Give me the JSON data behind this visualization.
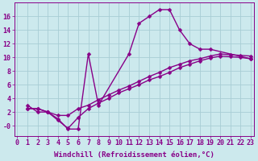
{
  "background_color": "#cce9ed",
  "grid_color": "#a8cdd4",
  "line_color": "#880088",
  "xlabel": "Windchill (Refroidissement éolien,°C)",
  "xlim": [
    -0.3,
    23.3
  ],
  "ylim": [
    -1.5,
    18.0
  ],
  "xticks": [
    0,
    1,
    2,
    3,
    4,
    5,
    6,
    7,
    8,
    9,
    10,
    11,
    12,
    13,
    14,
    15,
    16,
    17,
    18,
    19,
    20,
    21,
    22,
    23
  ],
  "yticks": [
    0,
    2,
    4,
    6,
    8,
    10,
    12,
    14,
    16
  ],
  "ytick_labels": [
    "-0",
    "2",
    "4",
    "6",
    "8",
    "10",
    "12",
    "14",
    "16"
  ],
  "line1_x": [
    1,
    2,
    3,
    4,
    5,
    6,
    7,
    8,
    11,
    12,
    13,
    14,
    15,
    16,
    17,
    18,
    19,
    23
  ],
  "line1_y": [
    3.0,
    2.0,
    2.0,
    1.0,
    -0.5,
    -0.5,
    10.5,
    3.0,
    10.5,
    15.0,
    16.0,
    17.0,
    17.0,
    14.0,
    12.0,
    11.2,
    11.2,
    9.8
  ],
  "line2_x": [
    1,
    2,
    3,
    4,
    5,
    6,
    7,
    8,
    9,
    10,
    11,
    12,
    13,
    14,
    15,
    16,
    17,
    18,
    19,
    20,
    21,
    22,
    23
  ],
  "line2_y": [
    2.5,
    2.5,
    2.0,
    1.5,
    1.5,
    2.5,
    3.0,
    3.8,
    4.5,
    5.2,
    5.8,
    6.5,
    7.2,
    7.8,
    8.5,
    9.0,
    9.5,
    9.8,
    10.2,
    10.5,
    10.4,
    10.3,
    10.2
  ],
  "line3_x": [
    1,
    2,
    3,
    4,
    5,
    6,
    7,
    8,
    9,
    10,
    11,
    12,
    13,
    14,
    15,
    16,
    17,
    18,
    19,
    20,
    21,
    22,
    23
  ],
  "line3_y": [
    2.5,
    2.5,
    2.0,
    0.8,
    -0.4,
    1.2,
    2.5,
    3.3,
    4.0,
    4.8,
    5.4,
    6.0,
    6.7,
    7.2,
    7.8,
    8.5,
    9.0,
    9.5,
    9.9,
    10.2,
    10.1,
    10.0,
    9.8
  ],
  "marker": "D",
  "marker_size": 2.5,
  "line_width": 1.0,
  "xlabel_fontsize": 6.5,
  "tick_fontsize": 6.0
}
